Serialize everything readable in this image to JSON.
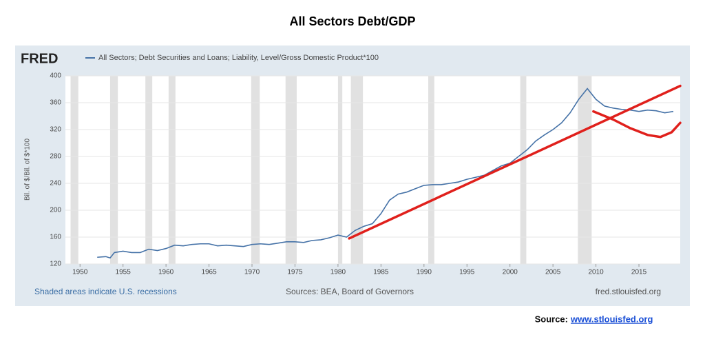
{
  "title": "All Sectors Debt/GDP",
  "source_label": "Source:",
  "source_link": "www.stlouisfed.org",
  "chart_data": {
    "type": "line",
    "logo": "FRED",
    "ylabel": "Bil. of $/Bil. of $*100",
    "footer_left": "Shaded areas indicate U.S. recessions",
    "footer_center": "Sources: BEA, Board of Governors",
    "footer_right": "fred.stlouisfed.org",
    "xlim": [
      1948.3,
      2019.8
    ],
    "ylim": [
      120,
      400
    ],
    "xticks": [
      1950,
      1955,
      1960,
      1965,
      1970,
      1975,
      1980,
      1985,
      1990,
      1995,
      2000,
      2005,
      2010,
      2015
    ],
    "yticks": [
      120,
      160,
      200,
      240,
      280,
      320,
      360,
      400
    ],
    "grid": true,
    "recessions": [
      [
        1948.9,
        1949.8
      ],
      [
        1953.5,
        1954.4
      ],
      [
        1957.6,
        1958.4
      ],
      [
        1960.3,
        1961.1
      ],
      [
        1969.9,
        1970.9
      ],
      [
        1973.9,
        1975.2
      ],
      [
        1980.0,
        1980.5
      ],
      [
        1981.5,
        1982.9
      ],
      [
        1990.5,
        1991.2
      ],
      [
        2001.2,
        2001.9
      ],
      [
        2007.9,
        2009.5
      ]
    ],
    "series": [
      {
        "name": "All Sectors; Debt Securities and Loans; Liability, Level/Gross Domestic Product*100",
        "color": "#4572a7",
        "x": [
          1952,
          1953,
          1953.5,
          1954,
          1955,
          1956,
          1957,
          1958,
          1959,
          1960,
          1961,
          1962,
          1963,
          1964,
          1965,
          1966,
          1967,
          1968,
          1969,
          1970,
          1971,
          1972,
          1973,
          1974,
          1975,
          1976,
          1977,
          1978,
          1979,
          1980,
          1981,
          1982,
          1983,
          1984,
          1985,
          1986,
          1987,
          1988,
          1989,
          1990,
          1991,
          1992,
          1993,
          1994,
          1995,
          1996,
          1997,
          1998,
          1999,
          2000,
          2001,
          2002,
          2003,
          2004,
          2005,
          2006,
          2007,
          2008,
          2009,
          2010,
          2011,
          2012,
          2013,
          2014,
          2015,
          2016,
          2017,
          2018,
          2019
        ],
        "values": [
          130,
          131,
          129,
          137,
          139,
          137,
          137,
          142,
          140,
          143,
          148,
          147,
          149,
          150,
          150,
          147,
          148,
          147,
          146,
          149,
          150,
          149,
          151,
          153,
          153,
          152,
          155,
          156,
          159,
          163,
          160,
          170,
          176,
          180,
          195,
          215,
          224,
          227,
          232,
          237,
          238,
          238,
          240,
          242,
          246,
          249,
          252,
          259,
          266,
          270,
          280,
          290,
          303,
          312,
          320,
          330,
          345,
          365,
          381,
          365,
          355,
          352,
          350,
          349,
          347,
          349,
          348,
          345,
          347
        ]
      }
    ],
    "overlays": [
      {
        "color": "#e0201c",
        "x": [
          1981.3,
          2019.8
        ],
        "values": [
          158,
          385
        ]
      },
      {
        "color": "#e0201c",
        "x": [
          2009.7,
          2012,
          2014,
          2016,
          2017.5,
          2018.8,
          2019.8
        ],
        "values": [
          347,
          335,
          322,
          312,
          309,
          316,
          330
        ]
      }
    ]
  }
}
